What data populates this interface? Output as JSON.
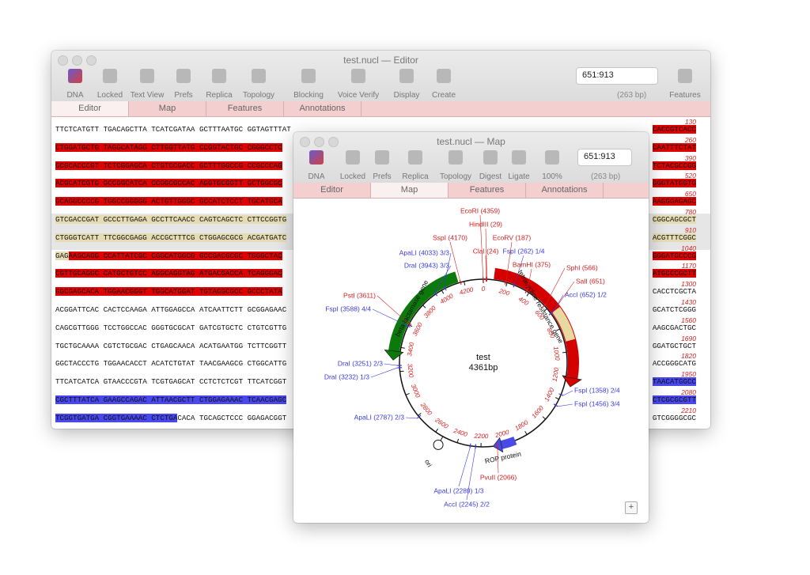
{
  "editor": {
    "title": "test.nucl — Editor",
    "toolbar": [
      "DNA",
      "Locked",
      "Text View",
      "Prefs",
      "Replica",
      "Topology",
      "Blocking",
      "Voice Verify",
      "Display",
      "Create",
      "Features"
    ],
    "range": "651:913",
    "length": "(263 bp)",
    "tabs": [
      "Editor",
      "Map",
      "Features",
      "Annotations"
    ],
    "rows": [
      {
        "number": 130,
        "segments": [
          {
            "text": "TTCTCATGTT TGACAGCTTA TCATCGATAA GCTTTAATGC GGTAGTTTAT",
            "highlight": null
          }
        ],
        "end": {
          "text": "CACCGTCACC",
          "highlight": "#e00000"
        }
      },
      {
        "number": 260,
        "segments": [
          {
            "text": "CTGGATGCTG TAGGCATAGG CTTGGTTATG CCGGTACTGC CGGGCCTC",
            "highlight": "#e00000"
          }
        ],
        "end": {
          "text": "CAATTTCTAT",
          "highlight": "#e00000"
        }
      },
      {
        "number": 390,
        "segments": [
          {
            "text": "GCGCACCCGT TCTCGGAGCA CTGTCCGACC GCTTTGGCCG CCGCCCAG",
            "highlight": "#e00000"
          }
        ],
        "end": {
          "text": "TCTACGCCGG",
          "highlight": "#e00000"
        }
      },
      {
        "number": 520,
        "segments": [
          {
            "text": "ACGCATCGTG GCCGGCATCA CCGGCGCCAC AGGTGCGGTT GCTGGCGC",
            "highlight": "#e00000"
          }
        ],
        "end": {
          "text": "GGGTATGGTG",
          "highlight": "#e00000"
        }
      },
      {
        "number": 650,
        "segments": [
          {
            "text": "GCAGGCCCCG TGGCCGGGGG ACTGTTGGGC GCCATCTCCT TGCATGCA",
            "highlight": "#e00000"
          }
        ],
        "end": {
          "text": "AAGGGAGAGC",
          "highlight": "#e00000"
        }
      },
      {
        "number": 780,
        "band": "#e6e6e6",
        "segments": [
          {
            "text": "GTCGACCGAT GCCCTTGAGA GCCTTCAACC CAGTCAGCTC CTTCCGGTG",
            "highlight": "#e6dcb4"
          }
        ],
        "end": {
          "text": "CGGCAGCGCT",
          "highlight": "#e6dcb4"
        }
      },
      {
        "number": 910,
        "band": "#e6e6e6",
        "segments": [
          {
            "text": "CTGGGTCATT TTCGGCGAGG ACCGCTTTCG CTGGAGCGCG ACGATGATC",
            "highlight": "#e6dcb4"
          }
        ],
        "end": {
          "text": "ACGTTTCGGC",
          "highlight": "#e6dcb4"
        }
      },
      {
        "number": 1040,
        "segments": [
          {
            "text": "GAG",
            "highlight": "#e6dcb4"
          },
          {
            "text": "AAGCAGG CCATTATCGC CGGCATGGCG GCCGACGCGC TGGGCTAC",
            "highlight": "#e00000"
          }
        ],
        "end": {
          "text": "GGGATGCCCG",
          "highlight": "#e00000"
        }
      },
      {
        "number": 1170,
        "segments": [
          {
            "text": "CGTTGCAGGC CATGCTGTCC AGGCAGGTAG ATGACGACCA TCAGGGAC",
            "highlight": "#e00000"
          }
        ],
        "end": {
          "text": "ATGCCCGCTT",
          "highlight": "#e00000"
        }
      },
      {
        "number": 1300,
        "segments": [
          {
            "text": "GGCGAGCACA TGGAACGGGT TGGCATGGAT TGTAGGCGCC GCCCTATA",
            "highlight": "#e00000"
          }
        ],
        "end": {
          "text": "CACCTCGCTA",
          "highlight": null
        }
      },
      {
        "number": 1430,
        "segments": [
          {
            "text": "ACGGATTCAC CACTCCAAGA ATTGGAGCCA ATCAATTCTT GCGGAGAAC",
            "highlight": null
          }
        ],
        "end": {
          "text": "GCATCTCGGG",
          "highlight": null
        }
      },
      {
        "number": 1560,
        "segments": [
          {
            "text": "CAGCGTTGGG TCCTGGCCAC GGGTGCGCAT GATCGTGCTC CTGTCGTTG",
            "highlight": null
          }
        ],
        "end": {
          "text": "AAGCGACTGC",
          "highlight": null
        }
      },
      {
        "number": 1690,
        "segments": [
          {
            "text": "TGCTGCAAAA CGTCTGCGAC CTGAGCAACA ACATGAATGG TCTTCGGTT",
            "highlight": null
          }
        ],
        "end": {
          "text": "GGATGCTGCT",
          "highlight": null
        }
      },
      {
        "number": 1820,
        "segments": [
          {
            "text": "GGCTACCCTG TGGAACACCT ACATCTGTAT TAACGAAGCG CTGGCATTG",
            "highlight": null
          }
        ],
        "end": {
          "text": "ACCGGGCATG",
          "highlight": null
        }
      },
      {
        "number": 1950,
        "segments": [
          {
            "text": "TTCATCATCA GTAACCCGTA TCGTGAGCAT CCTCTCTCGT TTCATCGGT",
            "highlight": null
          }
        ],
        "end": {
          "text": "TAACATGGCC",
          "highlight": "#4848ee"
        }
      },
      {
        "number": 2080,
        "segments": [
          {
            "text": "CGCTTTATCA GAAGCCAGAC ATTAACGCTT CTGGAGAAAC TCAACGAGC",
            "highlight": "#4848ee"
          }
        ],
        "end": {
          "text": "CTCGCGCGTT",
          "highlight": "#4848ee"
        }
      },
      {
        "number": 2210,
        "segments": [
          {
            "text": "TCGGTGATGA CGGTGAAAAC CTCTGA",
            "highlight": "#4848ee"
          },
          {
            "text": "CACA TGCAGCTCCC GGAGACGGT",
            "highlight": null
          }
        ],
        "end": {
          "text": "GTCGGGGCGC",
          "highlight": null
        }
      }
    ]
  },
  "map_window": {
    "title": "test.nucl — Map",
    "toolbar": [
      "DNA",
      "Locked",
      "Prefs",
      "Replica",
      "Topology",
      "Digest",
      "Ligate",
      "100%"
    ],
    "range": "651:913",
    "length": "(263 bp)",
    "tabs": [
      "Editor",
      "Map",
      "Features",
      "Annotations"
    ],
    "plus": "+"
  },
  "map": {
    "name": "test",
    "size_label": "4361bp",
    "length": 4361,
    "ticks": [
      0,
      200,
      400,
      600,
      800,
      1000,
      1200,
      1400,
      1600,
      1800,
      2000,
      2200,
      2400,
      2600,
      2800,
      3000,
      3200,
      3400,
      3600,
      3800,
      4000,
      4200
    ],
    "selection": {
      "start": 651,
      "end": 913,
      "color": "#e8d9a0"
    },
    "features": [
      {
        "name": "tetracycline resistance gene",
        "start": 86,
        "end": 1276,
        "strand": "forward",
        "color": "#d40000"
      },
      {
        "name": "beta-lactamase gene",
        "start": 3293,
        "end": 4153,
        "strand": "reverse",
        "color": "#0b7a0b"
      },
      {
        "name": "ROP protein",
        "start": 1910,
        "end": 2100,
        "strand": "forward",
        "color": "#4a4ae6"
      },
      {
        "name": "ori",
        "position": 2530,
        "color": "#ffffff"
      }
    ],
    "sites": [
      {
        "label": "EcoRI (4359)",
        "position": 4359,
        "color": "#d42020"
      },
      {
        "label": "HindIII (29)",
        "position": 29,
        "color": "#d42020"
      },
      {
        "label": "EcoRV (187)",
        "position": 187,
        "color": "#d42020"
      },
      {
        "label": "SspI (4170)",
        "position": 4170,
        "color": "#d42020"
      },
      {
        "label": "ClaI (24)",
        "position": 24,
        "color": "#d42020"
      },
      {
        "label": "FspI (262) 1/4",
        "position": 262,
        "color": "#3a3ae0"
      },
      {
        "label": "ApaLI (4033) 3/3",
        "position": 4033,
        "color": "#3a3ae0"
      },
      {
        "label": "DraI (3943) 3/3",
        "position": 3943,
        "color": "#3a3ae0"
      },
      {
        "label": "BamHI (375)",
        "position": 375,
        "color": "#d42020"
      },
      {
        "label": "SphI (566)",
        "position": 566,
        "color": "#d42020"
      },
      {
        "label": "SalI (651)",
        "position": 651,
        "color": "#d42020"
      },
      {
        "label": "AccI (652) 1/2",
        "position": 652,
        "color": "#3a3ae0"
      },
      {
        "label": "PstI (3611)",
        "position": 3611,
        "color": "#d42020"
      },
      {
        "label": "FspI (3588) 4/4",
        "position": 3588,
        "color": "#3a3ae0"
      },
      {
        "label": "DraI (3251) 2/3",
        "position": 3251,
        "color": "#3a3ae0"
      },
      {
        "label": "DraI (3232) 1/3",
        "position": 3232,
        "color": "#3a3ae0"
      },
      {
        "label": "FspI (1358) 2/4",
        "position": 1358,
        "color": "#3a3ae0"
      },
      {
        "label": "FspI (1456) 3/4",
        "position": 1456,
        "color": "#3a3ae0"
      },
      {
        "label": "ApaLI (2787) 2/3",
        "position": 2787,
        "color": "#3a3ae0"
      },
      {
        "label": "PvuII (2066)",
        "position": 2066,
        "color": "#d42020"
      },
      {
        "label": "ApaLI (2289) 1/3",
        "position": 2289,
        "color": "#3a3ae0"
      },
      {
        "label": "AccI (2245) 2/2",
        "position": 2245,
        "color": "#3a3ae0"
      }
    ]
  }
}
